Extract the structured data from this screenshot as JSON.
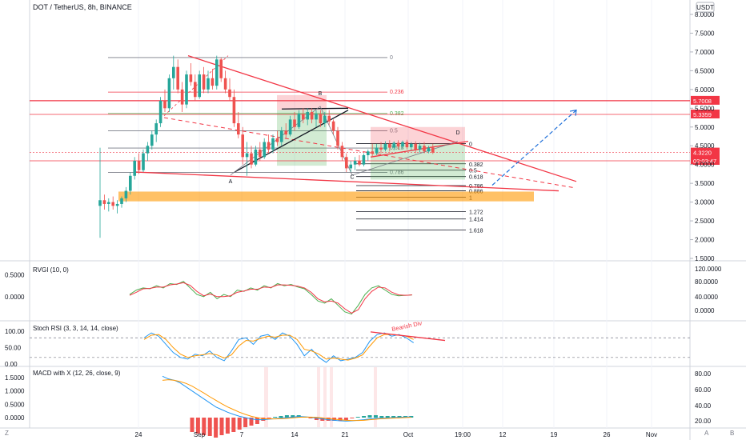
{
  "header": {
    "symbol": "DOT / TetherUS, 8h, BINANCE",
    "currency": "USDT"
  },
  "chart_data": {
    "type": "candlestick",
    "ylim": [
      1.5,
      8.0
    ],
    "price_ticks": [
      "8.0000",
      "7.5000",
      "7.0000",
      "6.5000",
      "6.0000",
      "5.5000",
      "5.0000",
      "4.5000",
      "4.0000",
      "3.5000",
      "3.0000",
      "2.5000",
      "2.0000",
      "1.5000"
    ],
    "x_ticks": [
      "24",
      "Sep",
      "7",
      "14",
      "21",
      "Oct",
      "19:00",
      "12",
      "19",
      "26",
      "Nov"
    ],
    "price_labels": [
      {
        "text": "5.7008",
        "value": 5.7008,
        "color": "#f23645"
      },
      {
        "text": "5.3359",
        "value": 5.3359,
        "color": "#f23645"
      },
      {
        "text": "4.3220",
        "value": 4.322,
        "color": "#f23645"
      },
      {
        "text": "02:03:47",
        "value": 4.1,
        "color": "#f23645"
      }
    ],
    "fib_left": {
      "levels": [
        "0",
        "0.236",
        "0.382",
        "0.5",
        "0.618",
        "0.786"
      ],
      "values": [
        6.85,
        5.93,
        5.36,
        4.9,
        4.44,
        3.79
      ]
    },
    "fib_right": {
      "levels": [
        "0",
        "0.382",
        "0.5",
        "0.618",
        "0.786",
        "0.886",
        "1",
        "1.272",
        "1.414",
        "1.618"
      ],
      "values": [
        4.56,
        4.02,
        3.85,
        3.68,
        3.44,
        3.3,
        3.13,
        2.75,
        2.55,
        2.26
      ]
    },
    "pattern_points": [
      "A",
      "B",
      "C",
      "D"
    ],
    "candles": [
      {
        "o": 2.9,
        "h": 4.45,
        "l": 2.05,
        "c": 3.05
      },
      {
        "o": 3.05,
        "h": 3.2,
        "l": 2.8,
        "c": 2.95
      },
      {
        "o": 2.95,
        "h": 3.1,
        "l": 2.75,
        "c": 3.0
      },
      {
        "o": 3.0,
        "h": 3.15,
        "l": 2.8,
        "c": 2.9
      },
      {
        "o": 2.9,
        "h": 3.05,
        "l": 2.7,
        "c": 2.95
      },
      {
        "o": 2.95,
        "h": 3.15,
        "l": 2.85,
        "c": 3.1
      },
      {
        "o": 3.1,
        "h": 3.4,
        "l": 3.0,
        "c": 3.3
      },
      {
        "o": 3.3,
        "h": 3.8,
        "l": 3.2,
        "c": 3.7
      },
      {
        "o": 3.7,
        "h": 4.2,
        "l": 3.6,
        "c": 4.1
      },
      {
        "o": 4.1,
        "h": 4.3,
        "l": 3.75,
        "c": 3.85
      },
      {
        "o": 3.85,
        "h": 4.4,
        "l": 3.8,
        "c": 4.3
      },
      {
        "o": 4.3,
        "h": 4.6,
        "l": 4.1,
        "c": 4.5
      },
      {
        "o": 4.5,
        "h": 4.9,
        "l": 4.4,
        "c": 4.8
      },
      {
        "o": 4.8,
        "h": 5.2,
        "l": 4.6,
        "c": 5.1
      },
      {
        "o": 5.1,
        "h": 5.8,
        "l": 5.0,
        "c": 5.7
      },
      {
        "o": 5.7,
        "h": 6.0,
        "l": 5.4,
        "c": 5.5
      },
      {
        "o": 5.5,
        "h": 6.4,
        "l": 5.4,
        "c": 6.3
      },
      {
        "o": 6.3,
        "h": 6.9,
        "l": 6.0,
        "c": 6.6
      },
      {
        "o": 6.6,
        "h": 6.8,
        "l": 5.9,
        "c": 6.0
      },
      {
        "o": 6.0,
        "h": 6.2,
        "l": 5.4,
        "c": 5.6
      },
      {
        "o": 5.6,
        "h": 6.5,
        "l": 5.5,
        "c": 6.4
      },
      {
        "o": 6.4,
        "h": 6.7,
        "l": 6.1,
        "c": 6.2
      },
      {
        "o": 6.2,
        "h": 6.4,
        "l": 5.7,
        "c": 5.8
      },
      {
        "o": 5.8,
        "h": 6.5,
        "l": 5.75,
        "c": 6.4
      },
      {
        "o": 6.4,
        "h": 6.6,
        "l": 5.9,
        "c": 6.0
      },
      {
        "o": 6.0,
        "h": 6.5,
        "l": 5.9,
        "c": 6.3
      },
      {
        "o": 6.3,
        "h": 6.55,
        "l": 6.0,
        "c": 6.1
      },
      {
        "o": 6.1,
        "h": 6.9,
        "l": 6.0,
        "c": 6.8
      },
      {
        "o": 6.8,
        "h": 6.85,
        "l": 6.2,
        "c": 6.3
      },
      {
        "o": 6.3,
        "h": 6.5,
        "l": 5.9,
        "c": 6.0
      },
      {
        "o": 6.0,
        "h": 6.3,
        "l": 5.7,
        "c": 5.8
      },
      {
        "o": 5.8,
        "h": 6.0,
        "l": 5.0,
        "c": 5.1
      },
      {
        "o": 5.1,
        "h": 5.4,
        "l": 4.7,
        "c": 4.8
      },
      {
        "o": 4.8,
        "h": 5.0,
        "l": 4.0,
        "c": 4.2
      },
      {
        "o": 4.2,
        "h": 4.6,
        "l": 3.7,
        "c": 4.3
      },
      {
        "o": 4.3,
        "h": 4.5,
        "l": 3.9,
        "c": 4.0
      },
      {
        "o": 4.0,
        "h": 4.5,
        "l": 3.95,
        "c": 4.4
      },
      {
        "o": 4.4,
        "h": 4.6,
        "l": 4.1,
        "c": 4.2
      },
      {
        "o": 4.2,
        "h": 4.7,
        "l": 4.15,
        "c": 4.6
      },
      {
        "o": 4.6,
        "h": 4.8,
        "l": 4.3,
        "c": 4.4
      },
      {
        "o": 4.4,
        "h": 4.8,
        "l": 4.3,
        "c": 4.7
      },
      {
        "o": 4.7,
        "h": 4.9,
        "l": 4.5,
        "c": 4.6
      },
      {
        "o": 4.6,
        "h": 5.0,
        "l": 4.5,
        "c": 4.9
      },
      {
        "o": 4.9,
        "h": 5.1,
        "l": 4.7,
        "c": 4.8
      },
      {
        "o": 4.8,
        "h": 5.3,
        "l": 4.75,
        "c": 5.2
      },
      {
        "o": 5.2,
        "h": 5.4,
        "l": 4.9,
        "c": 5.0
      },
      {
        "o": 5.0,
        "h": 5.45,
        "l": 4.95,
        "c": 5.35
      },
      {
        "o": 5.35,
        "h": 5.5,
        "l": 5.1,
        "c": 5.2
      },
      {
        "o": 5.2,
        "h": 5.5,
        "l": 5.05,
        "c": 5.4
      },
      {
        "o": 5.4,
        "h": 5.5,
        "l": 5.1,
        "c": 5.2
      },
      {
        "o": 5.2,
        "h": 5.45,
        "l": 5.0,
        "c": 5.35
      },
      {
        "o": 5.35,
        "h": 5.45,
        "l": 5.0,
        "c": 5.1
      },
      {
        "o": 5.1,
        "h": 5.4,
        "l": 5.0,
        "c": 5.3
      },
      {
        "o": 5.3,
        "h": 5.45,
        "l": 5.05,
        "c": 5.15
      },
      {
        "o": 5.15,
        "h": 5.2,
        "l": 4.8,
        "c": 4.9
      },
      {
        "o": 4.9,
        "h": 5.0,
        "l": 4.4,
        "c": 4.5
      },
      {
        "o": 4.5,
        "h": 4.6,
        "l": 4.1,
        "c": 4.2
      },
      {
        "o": 4.2,
        "h": 4.3,
        "l": 3.8,
        "c": 3.9
      },
      {
        "o": 3.9,
        "h": 4.1,
        "l": 3.8,
        "c": 4.0
      },
      {
        "o": 4.0,
        "h": 4.2,
        "l": 3.85,
        "c": 4.1
      },
      {
        "o": 4.1,
        "h": 4.25,
        "l": 3.95,
        "c": 4.0
      },
      {
        "o": 4.0,
        "h": 4.3,
        "l": 3.95,
        "c": 4.25
      },
      {
        "o": 4.25,
        "h": 4.4,
        "l": 4.1,
        "c": 4.35
      },
      {
        "o": 4.35,
        "h": 4.55,
        "l": 4.2,
        "c": 4.3
      },
      {
        "o": 4.3,
        "h": 4.55,
        "l": 4.25,
        "c": 4.45
      },
      {
        "o": 4.45,
        "h": 4.6,
        "l": 4.3,
        "c": 4.4
      },
      {
        "o": 4.4,
        "h": 4.62,
        "l": 4.35,
        "c": 4.55
      },
      {
        "o": 4.55,
        "h": 4.65,
        "l": 4.35,
        "c": 4.45
      },
      {
        "o": 4.45,
        "h": 4.62,
        "l": 4.38,
        "c": 4.58
      },
      {
        "o": 4.58,
        "h": 4.65,
        "l": 4.4,
        "c": 4.48
      },
      {
        "o": 4.48,
        "h": 4.64,
        "l": 4.42,
        "c": 4.6
      },
      {
        "o": 4.6,
        "h": 4.66,
        "l": 4.4,
        "c": 4.46
      },
      {
        "o": 4.46,
        "h": 4.6,
        "l": 4.38,
        "c": 4.55
      },
      {
        "o": 4.55,
        "h": 4.62,
        "l": 4.3,
        "c": 4.4
      },
      {
        "o": 4.4,
        "h": 4.58,
        "l": 4.32,
        "c": 4.5
      },
      {
        "o": 4.5,
        "h": 4.6,
        "l": 4.3,
        "c": 4.35
      },
      {
        "o": 4.35,
        "h": 4.5,
        "l": 4.3,
        "c": 4.45
      },
      {
        "o": 4.45,
        "h": 4.55,
        "l": 4.28,
        "c": 4.32
      }
    ],
    "rvgi": {
      "title": "RVGI (10, 0)",
      "ticks": [
        "0.5000",
        "0.0000"
      ],
      "right_ticks": [
        "120.0000",
        "80.0000",
        "40.0000",
        "0.0000"
      ],
      "ylim": [
        -0.5,
        0.75
      ],
      "main": [
        0.05,
        0.15,
        0.2,
        0.18,
        0.25,
        0.2,
        0.3,
        0.28,
        0.35,
        0.2,
        0.05,
        0.0,
        0.1,
        -0.05,
        0.05,
        0.0,
        0.15,
        0.12,
        0.2,
        0.15,
        0.25,
        0.2,
        0.3,
        0.25,
        0.28,
        0.22,
        0.18,
        0.05,
        -0.1,
        -0.15,
        -0.05,
        -0.2,
        -0.35,
        -0.4,
        -0.2,
        0.05,
        0.2,
        0.25,
        0.15,
        0.05,
        0.02,
        0.03,
        0.04
      ],
      "signal": [
        0.03,
        0.1,
        0.18,
        0.19,
        0.22,
        0.22,
        0.27,
        0.29,
        0.32,
        0.26,
        0.12,
        0.02,
        0.06,
        0.0,
        0.0,
        0.02,
        0.1,
        0.13,
        0.17,
        0.17,
        0.22,
        0.21,
        0.27,
        0.27,
        0.26,
        0.24,
        0.2,
        0.1,
        -0.05,
        -0.12,
        -0.1,
        -0.15,
        -0.28,
        -0.38,
        -0.3,
        -0.05,
        0.12,
        0.22,
        0.2,
        0.1,
        0.04,
        0.03,
        0.04
      ]
    },
    "stoch_rsi": {
      "title": "Stoch RSI (3, 3, 14, 14, close)",
      "ticks": [
        "100.00",
        "50.00",
        "0.00"
      ],
      "ylim": [
        0,
        110
      ],
      "bands": [
        80,
        20
      ],
      "annotation": "Bearish Div",
      "k": [
        80,
        95,
        85,
        60,
        35,
        20,
        15,
        30,
        25,
        40,
        20,
        10,
        40,
        75,
        80,
        60,
        85,
        90,
        75,
        95,
        85,
        60,
        25,
        45,
        20,
        5,
        25,
        10,
        15,
        20,
        35,
        70,
        90,
        95,
        85,
        90,
        80,
        65
      ],
      "d": [
        75,
        88,
        90,
        75,
        50,
        30,
        20,
        25,
        28,
        32,
        28,
        18,
        28,
        55,
        72,
        70,
        78,
        85,
        82,
        88,
        88,
        75,
        45,
        40,
        30,
        15,
        18,
        15,
        12,
        18,
        28,
        55,
        80,
        90,
        90,
        88,
        85,
        75
      ]
    },
    "macd": {
      "title": "MACD with X (12, 26, close, 9)",
      "ticks": [
        "1.5000",
        "1.0000",
        "0.5000",
        "0.0000"
      ],
      "right_ticks": [
        "80.00",
        "60.00",
        "40.00",
        "20.00"
      ],
      "ylim": [
        -0.3,
        1.8
      ],
      "macd": [
        1.55,
        1.45,
        1.4,
        1.3,
        1.15,
        1.0,
        0.85,
        0.7,
        0.55,
        0.4,
        0.3,
        0.2,
        0.12,
        0.05,
        0.0,
        -0.05,
        -0.08,
        -0.08,
        -0.06,
        -0.04,
        -0.02,
        0.0,
        0.02,
        0.04,
        0.03,
        0.01,
        -0.02,
        -0.05,
        -0.08,
        -0.1,
        -0.12,
        -0.13,
        -0.12,
        -0.1,
        -0.08,
        -0.05,
        -0.03,
        -0.02,
        -0.01,
        0.0,
        0.01,
        0.02,
        0.03
      ],
      "signal": [
        1.4,
        1.42,
        1.4,
        1.35,
        1.28,
        1.18,
        1.05,
        0.92,
        0.78,
        0.65,
        0.52,
        0.4,
        0.3,
        0.2,
        0.12,
        0.05,
        0.0,
        -0.04,
        -0.05,
        -0.05,
        -0.04,
        -0.03,
        -0.01,
        0.01,
        0.02,
        0.02,
        0.01,
        -0.01,
        -0.04,
        -0.06,
        -0.08,
        -0.1,
        -0.11,
        -0.11,
        -0.1,
        -0.08,
        -0.06,
        -0.04,
        -0.03,
        -0.02,
        -0.01,
        0.0,
        0.01
      ]
    }
  }
}
